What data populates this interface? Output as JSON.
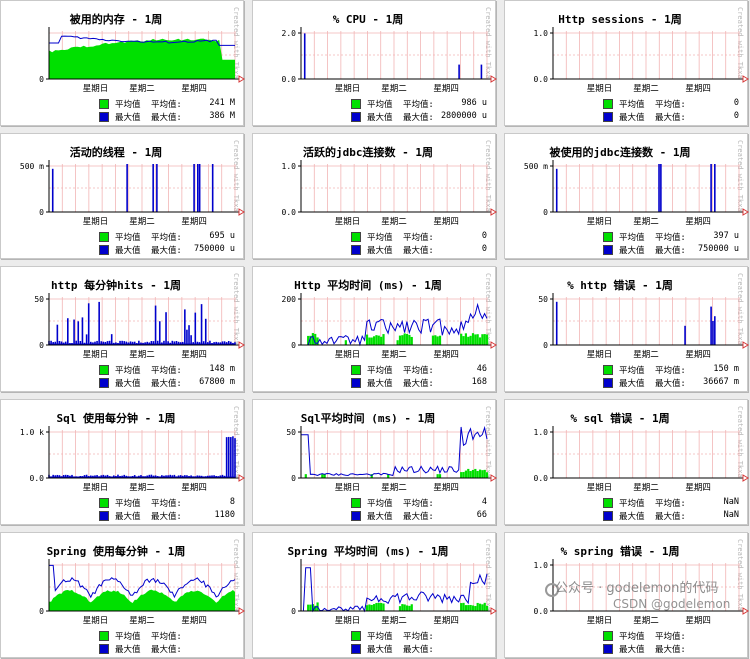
{
  "colors": {
    "avg": "#00e000",
    "max": "#0000cc",
    "grid": "#f2b5b5",
    "axis": "#000000",
    "arrow": "#d63838"
  },
  "legend_labels": {
    "avg_swatch_text": "平均值",
    "avg_label": "平均值:",
    "max_swatch_text": "最大值",
    "max_label": "最大值:"
  },
  "days": [
    "星期日",
    "星期二",
    "星期四"
  ],
  "watermark": "Created with Tkxa",
  "panels": [
    {
      "title": "被用的内存 - 1周",
      "y_ticks": [
        "0"
      ],
      "avg_value": "241 M",
      "max_value": "386 M",
      "shape": "memory"
    },
    {
      "title": "% CPU - 1周",
      "y_ticks": [
        "0.0",
        "2.0"
      ],
      "avg_value": "986 u",
      "max_value": "2800000 u",
      "shape": "cpu"
    },
    {
      "title": "Http sessions - 1周",
      "y_ticks": [
        "0.0",
        "1.0"
      ],
      "avg_value": "0",
      "max_value": "0",
      "shape": "empty"
    },
    {
      "title": "活动的线程 - 1周",
      "y_ticks": [
        "0",
        "500 m"
      ],
      "avg_value": "695 u",
      "max_value": "750000 u",
      "shape": "threads"
    },
    {
      "title": "活跃的jdbc连接数 - 1周",
      "y_ticks": [
        "0.0",
        "1.0"
      ],
      "avg_value": "0",
      "max_value": "0",
      "shape": "empty"
    },
    {
      "title": "被使用的jdbc连接数 - 1周",
      "y_ticks": [
        "0",
        "500 m"
      ],
      "avg_value": "397 u",
      "max_value": "750000 u",
      "shape": "jdbcused"
    },
    {
      "title": "http 每分钟hits - 1周",
      "y_ticks": [
        "0",
        "50"
      ],
      "avg_value": "148 m",
      "max_value": "67800 m",
      "shape": "hits"
    },
    {
      "title": "Http 平均时间 (ms) - 1周",
      "y_ticks": [
        "0",
        "200"
      ],
      "avg_value": "46",
      "max_value": "168",
      "shape": "httptime"
    },
    {
      "title": "% http 错误 - 1周",
      "y_ticks": [
        "0",
        "50"
      ],
      "avg_value": "150 m",
      "max_value": "36667 m",
      "shape": "httperr"
    },
    {
      "title": "Sql 使用每分钟 - 1周",
      "y_ticks": [
        "0.0",
        "1.0 k"
      ],
      "avg_value": "8",
      "max_value": "1180",
      "shape": "sqlmin"
    },
    {
      "title": "Sql平均时间 (ms) - 1周",
      "y_ticks": [
        "0",
        "50"
      ],
      "avg_value": "4",
      "max_value": "66",
      "shape": "sqltime"
    },
    {
      "title": "% sql 错误 - 1周",
      "y_ticks": [
        "0.0",
        "1.0"
      ],
      "avg_value": "NaN",
      "max_value": "NaN",
      "shape": "empty"
    },
    {
      "title": "Spring 使用每分钟 - 1周",
      "y_ticks": [
        "0"
      ],
      "avg_value": "",
      "max_value": "",
      "shape": "spring"
    },
    {
      "title": "Spring 平均时间 (ms) - 1周",
      "y_ticks": [
        "0"
      ],
      "avg_value": "",
      "max_value": "",
      "shape": "springtime"
    },
    {
      "title": "% spring 错误 - 1周",
      "y_ticks": [
        "0.0",
        "1.0"
      ],
      "avg_value": "",
      "max_value": "",
      "shape": "empty"
    }
  ],
  "overlay": {
    "line1": "公众号 · godelemon的代码",
    "line2": "CSDN @godelemon"
  }
}
